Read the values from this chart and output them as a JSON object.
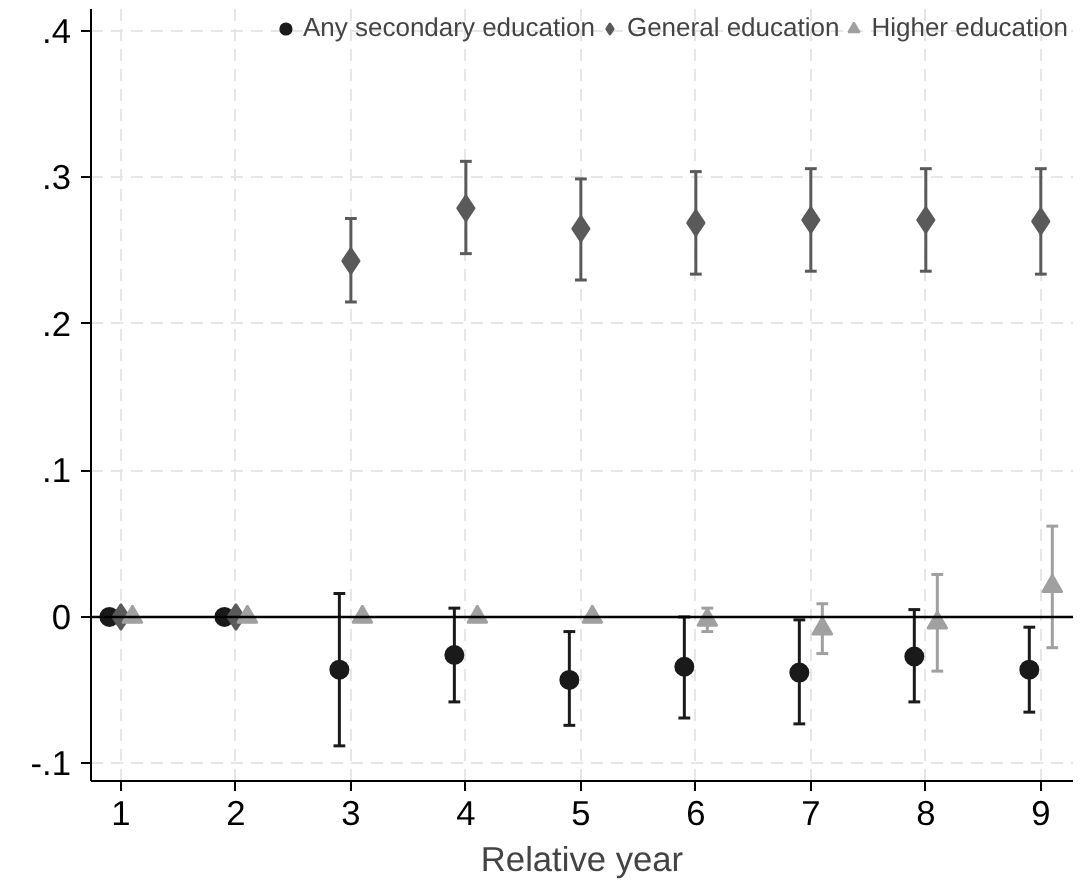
{
  "chart_data": {
    "type": "scatter",
    "xlabel": "Relative year",
    "xlim": [
      0.74,
      9.28
    ],
    "ylim": [
      -0.112,
      0.415
    ],
    "xticks": [
      1,
      2,
      3,
      4,
      5,
      6,
      7,
      8,
      9
    ],
    "yticks": [
      {
        "value": -0.1,
        "label": "-.1"
      },
      0,
      {
        "value": 0.1,
        "label": ".1"
      },
      {
        "value": 0.2,
        "label": ".2"
      },
      {
        "value": 0.3,
        "label": ".3"
      },
      {
        "value": 0.4,
        "label": ".4"
      }
    ],
    "grid": true,
    "legend": "top",
    "ref_lines": [
      {
        "axis": "y",
        "value": 0,
        "color": "#000000"
      }
    ],
    "series": [
      {
        "name": "Any secondary education",
        "color": "#1a1a1a",
        "marker": "circle",
        "x": [
          0.9,
          1.9,
          2.9,
          3.9,
          4.9,
          5.9,
          6.9,
          7.9,
          8.9
        ],
        "values": [
          0,
          0,
          -0.036,
          -0.026,
          -0.043,
          -0.034,
          -0.038,
          -0.027,
          -0.036
        ],
        "errors": [
          null,
          null,
          [
            -0.088,
            0.016
          ],
          [
            -0.058,
            0.006
          ],
          [
            -0.074,
            -0.01
          ],
          [
            -0.069,
            0.0
          ],
          [
            -0.073,
            -0.002
          ],
          [
            -0.058,
            0.005
          ],
          [
            -0.065,
            -0.007
          ]
        ]
      },
      {
        "name": "General education",
        "color": "#5a5a5a",
        "marker": "diamond",
        "x": [
          1,
          2,
          3,
          4,
          5,
          6,
          7,
          8,
          9
        ],
        "values": [
          0,
          0,
          0.243,
          0.279,
          0.265,
          0.269,
          0.271,
          0.271,
          0.27
        ],
        "errors": [
          null,
          null,
          [
            0.215,
            0.272
          ],
          [
            0.248,
            0.311
          ],
          [
            0.23,
            0.299
          ],
          [
            0.234,
            0.304
          ],
          [
            0.236,
            0.306
          ],
          [
            0.236,
            0.306
          ],
          [
            0.234,
            0.306
          ]
        ]
      },
      {
        "name": "Higher education",
        "color": "#a0a0a0",
        "marker": "triangle",
        "x": [
          1.1,
          2.1,
          3.1,
          4.1,
          5.1,
          6.1,
          7.1,
          8.1,
          9.1
        ],
        "values": [
          0,
          0,
          0,
          0,
          0,
          -0.002,
          -0.008,
          -0.004,
          0.021
        ],
        "errors": [
          null,
          null,
          null,
          null,
          null,
          [
            -0.01,
            0.006
          ],
          [
            -0.025,
            0.009
          ],
          [
            -0.037,
            0.029
          ],
          [
            -0.021,
            0.062
          ]
        ]
      }
    ]
  }
}
